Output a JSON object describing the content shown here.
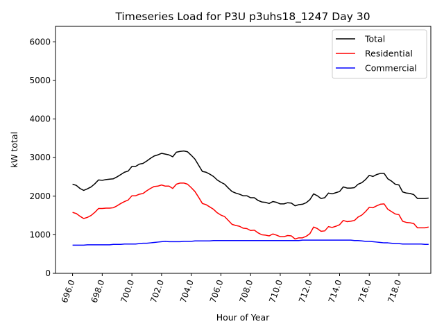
{
  "chart_data": {
    "type": "line",
    "title": "Timeseries Load for P3U p3uhs18_1247  Day 30",
    "xlabel": "Hour of Year",
    "ylabel": "kW total",
    "xlim": [
      694.85,
      720.15
    ],
    "ylim": [
      0,
      6400
    ],
    "xticks": [
      696,
      698,
      700,
      702,
      704,
      706,
      708,
      710,
      712,
      714,
      716,
      718
    ],
    "xtick_labels": [
      "696.0",
      "698.0",
      "700.0",
      "702.0",
      "704.0",
      "706.0",
      "708.0",
      "710.0",
      "712.0",
      "714.0",
      "716.0",
      "718.0"
    ],
    "yticks": [
      0,
      1000,
      2000,
      3000,
      4000,
      5000,
      6000
    ],
    "ytick_labels": [
      "0",
      "1000",
      "2000",
      "3000",
      "4000",
      "5000",
      "6000"
    ],
    "legend_position": "top-right",
    "x_start": 696.0,
    "x_step": 0.25,
    "series": [
      {
        "name": "Total",
        "color": "#000000",
        "values": [
          2310,
          2280,
          2200,
          2150,
          2190,
          2240,
          2320,
          2420,
          2410,
          2430,
          2440,
          2450,
          2500,
          2560,
          2620,
          2650,
          2770,
          2770,
          2830,
          2850,
          2910,
          2980,
          3040,
          3070,
          3110,
          3090,
          3070,
          3020,
          3140,
          3160,
          3170,
          3150,
          3060,
          2960,
          2800,
          2640,
          2620,
          2570,
          2510,
          2420,
          2360,
          2310,
          2210,
          2120,
          2080,
          2050,
          2010,
          2010,
          1960,
          1960,
          1890,
          1850,
          1840,
          1810,
          1860,
          1840,
          1800,
          1800,
          1830,
          1820,
          1750,
          1780,
          1790,
          1830,
          1910,
          2060,
          2010,
          1940,
          1960,
          2080,
          2060,
          2090,
          2120,
          2240,
          2210,
          2210,
          2220,
          2310,
          2350,
          2430,
          2540,
          2510,
          2560,
          2590,
          2590,
          2450,
          2390,
          2310,
          2290,
          2110,
          2080,
          2070,
          2040,
          1940,
          1940,
          1940,
          1950
        ]
      },
      {
        "name": "Residential",
        "color": "#ff0000",
        "values": [
          1580,
          1550,
          1480,
          1420,
          1450,
          1500,
          1580,
          1680,
          1680,
          1690,
          1690,
          1700,
          1750,
          1810,
          1860,
          1900,
          2010,
          2010,
          2050,
          2070,
          2140,
          2200,
          2250,
          2260,
          2290,
          2260,
          2260,
          2200,
          2310,
          2340,
          2340,
          2310,
          2220,
          2120,
          1970,
          1810,
          1780,
          1720,
          1660,
          1570,
          1510,
          1470,
          1370,
          1270,
          1240,
          1220,
          1170,
          1160,
          1110,
          1120,
          1050,
          1000,
          990,
          970,
          1020,
          990,
          950,
          950,
          980,
          970,
          890,
          920,
          920,
          960,
          1030,
          1200,
          1160,
          1090,
          1100,
          1210,
          1190,
          1220,
          1260,
          1370,
          1340,
          1350,
          1370,
          1460,
          1510,
          1600,
          1710,
          1700,
          1750,
          1790,
          1800,
          1660,
          1600,
          1540,
          1520,
          1350,
          1320,
          1310,
          1290,
          1180,
          1180,
          1180,
          1200
        ]
      },
      {
        "name": "Commercial",
        "color": "#0000ff",
        "values": [
          730,
          730,
          730,
          730,
          740,
          740,
          740,
          740,
          740,
          740,
          740,
          750,
          750,
          750,
          760,
          760,
          760,
          760,
          770,
          780,
          780,
          790,
          800,
          810,
          820,
          830,
          820,
          820,
          820,
          820,
          830,
          830,
          830,
          840,
          840,
          840,
          840,
          840,
          850,
          850,
          850,
          850,
          850,
          850,
          850,
          850,
          850,
          850,
          850,
          850,
          850,
          850,
          850,
          850,
          850,
          850,
          850,
          850,
          850,
          850,
          850,
          850,
          860,
          860,
          860,
          860,
          860,
          860,
          860,
          860,
          860,
          860,
          860,
          860,
          860,
          860,
          850,
          850,
          840,
          830,
          830,
          820,
          810,
          800,
          790,
          790,
          780,
          770,
          770,
          760,
          760,
          760,
          760,
          760,
          760,
          750,
          750
        ]
      }
    ]
  }
}
